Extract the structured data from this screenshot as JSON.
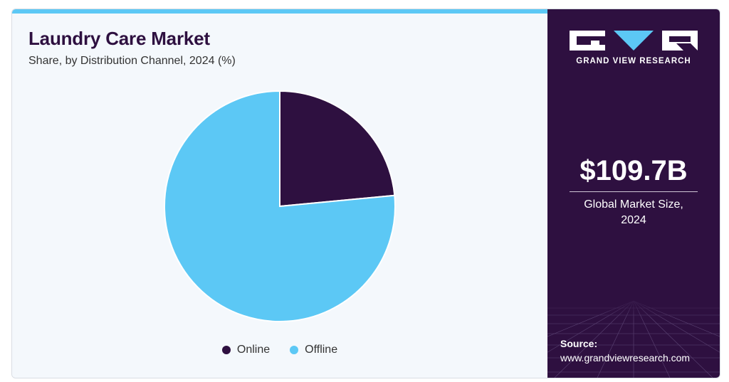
{
  "chart_data": {
    "type": "pie",
    "title": "Laundry Care Market",
    "subtitle": "Share, by Distribution Channel, 2024 (%)",
    "categories": [
      "Online",
      "Offline"
    ],
    "values": [
      23.5,
      76.5
    ],
    "colors": [
      "#2e1040",
      "#5cc8f5"
    ],
    "legend_position": "bottom"
  },
  "sidebar": {
    "brand": "GRAND VIEW RESEARCH",
    "market_value": "$109.7B",
    "market_label_line1": "Global Market Size,",
    "market_label_line2": "2024",
    "source_title": "Source:",
    "source_url": "www.grandviewresearch.com"
  },
  "theme": {
    "accent": "#5cc8f5",
    "dark": "#2e1040"
  }
}
